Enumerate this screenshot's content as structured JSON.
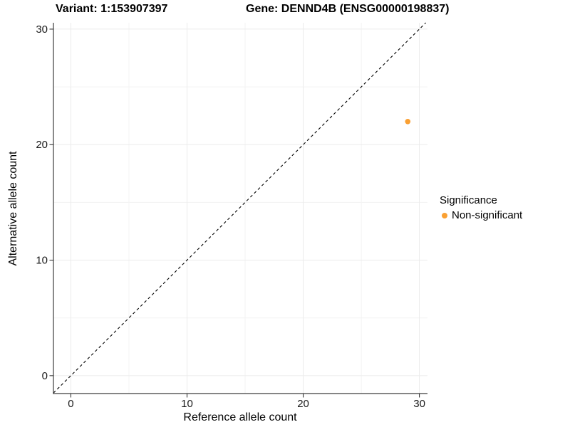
{
  "chart_data": {
    "type": "scatter",
    "title_left": "Variant: 1:153907397",
    "title_right": "Gene: DENND4B (ENSG00000198837)",
    "xlabel": "Reference allele count",
    "ylabel": "Alternative allele count",
    "xlim": [
      -1.5,
      30.7
    ],
    "ylim": [
      -1.55,
      30.55
    ],
    "x_ticks": [
      0,
      10,
      20,
      30
    ],
    "y_ticks": [
      0,
      10,
      20,
      30
    ],
    "x_minor_ticks": [
      5,
      15,
      25
    ],
    "y_minor_ticks": [
      5,
      15,
      25
    ],
    "grid": true,
    "reference_line": {
      "equation": "y = x",
      "style": "dashed",
      "color": "#000000"
    },
    "series": [
      {
        "name": "Non-significant",
        "color": "#faa032",
        "points": [
          {
            "x": 29,
            "y": 22
          }
        ]
      }
    ],
    "legend": {
      "title": "Significance",
      "position": "right",
      "entries": [
        {
          "label": "Non-significant",
          "color": "#faa032"
        }
      ]
    }
  },
  "colors": {
    "background": "#ffffff",
    "grid_major": "#ebebeb",
    "grid_minor": "#f3f3f3",
    "axis_line": "#3c3c3c",
    "tick_mark": "#333333",
    "tick_label": "#1a1a1a",
    "dashed_line": "#000000",
    "point_orange": "#faa032"
  }
}
